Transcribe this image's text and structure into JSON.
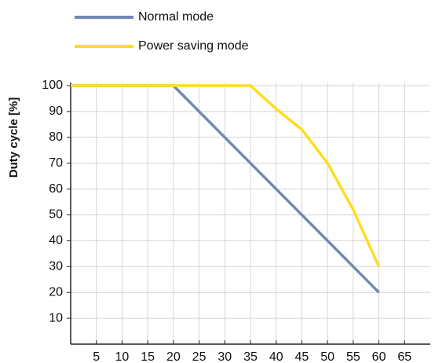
{
  "chart_data": {
    "type": "line",
    "y_label": "Duty cycle [%]",
    "series": [
      {
        "name": "Normal mode",
        "color": "#6f8bb1",
        "x": [
          0,
          20,
          35,
          40,
          45,
          50,
          55,
          60
        ],
        "values": [
          100,
          100,
          70,
          60,
          50,
          40,
          30,
          20
        ]
      },
      {
        "name": "Power saving mode",
        "color": "#ffdd1f",
        "x": [
          0,
          35,
          40,
          45,
          50,
          55,
          60
        ],
        "values": [
          100,
          100,
          91,
          83,
          70,
          52,
          30
        ]
      }
    ],
    "xlim": [
      0,
      70
    ],
    "xticks": [
      5,
      10,
      15,
      20,
      25,
      30,
      35,
      40,
      45,
      50,
      55,
      60,
      65
    ],
    "ylim": [
      0,
      100
    ],
    "yticks": [
      10,
      20,
      30,
      40,
      50,
      60,
      70,
      80,
      90,
      100
    ],
    "grid": true
  }
}
